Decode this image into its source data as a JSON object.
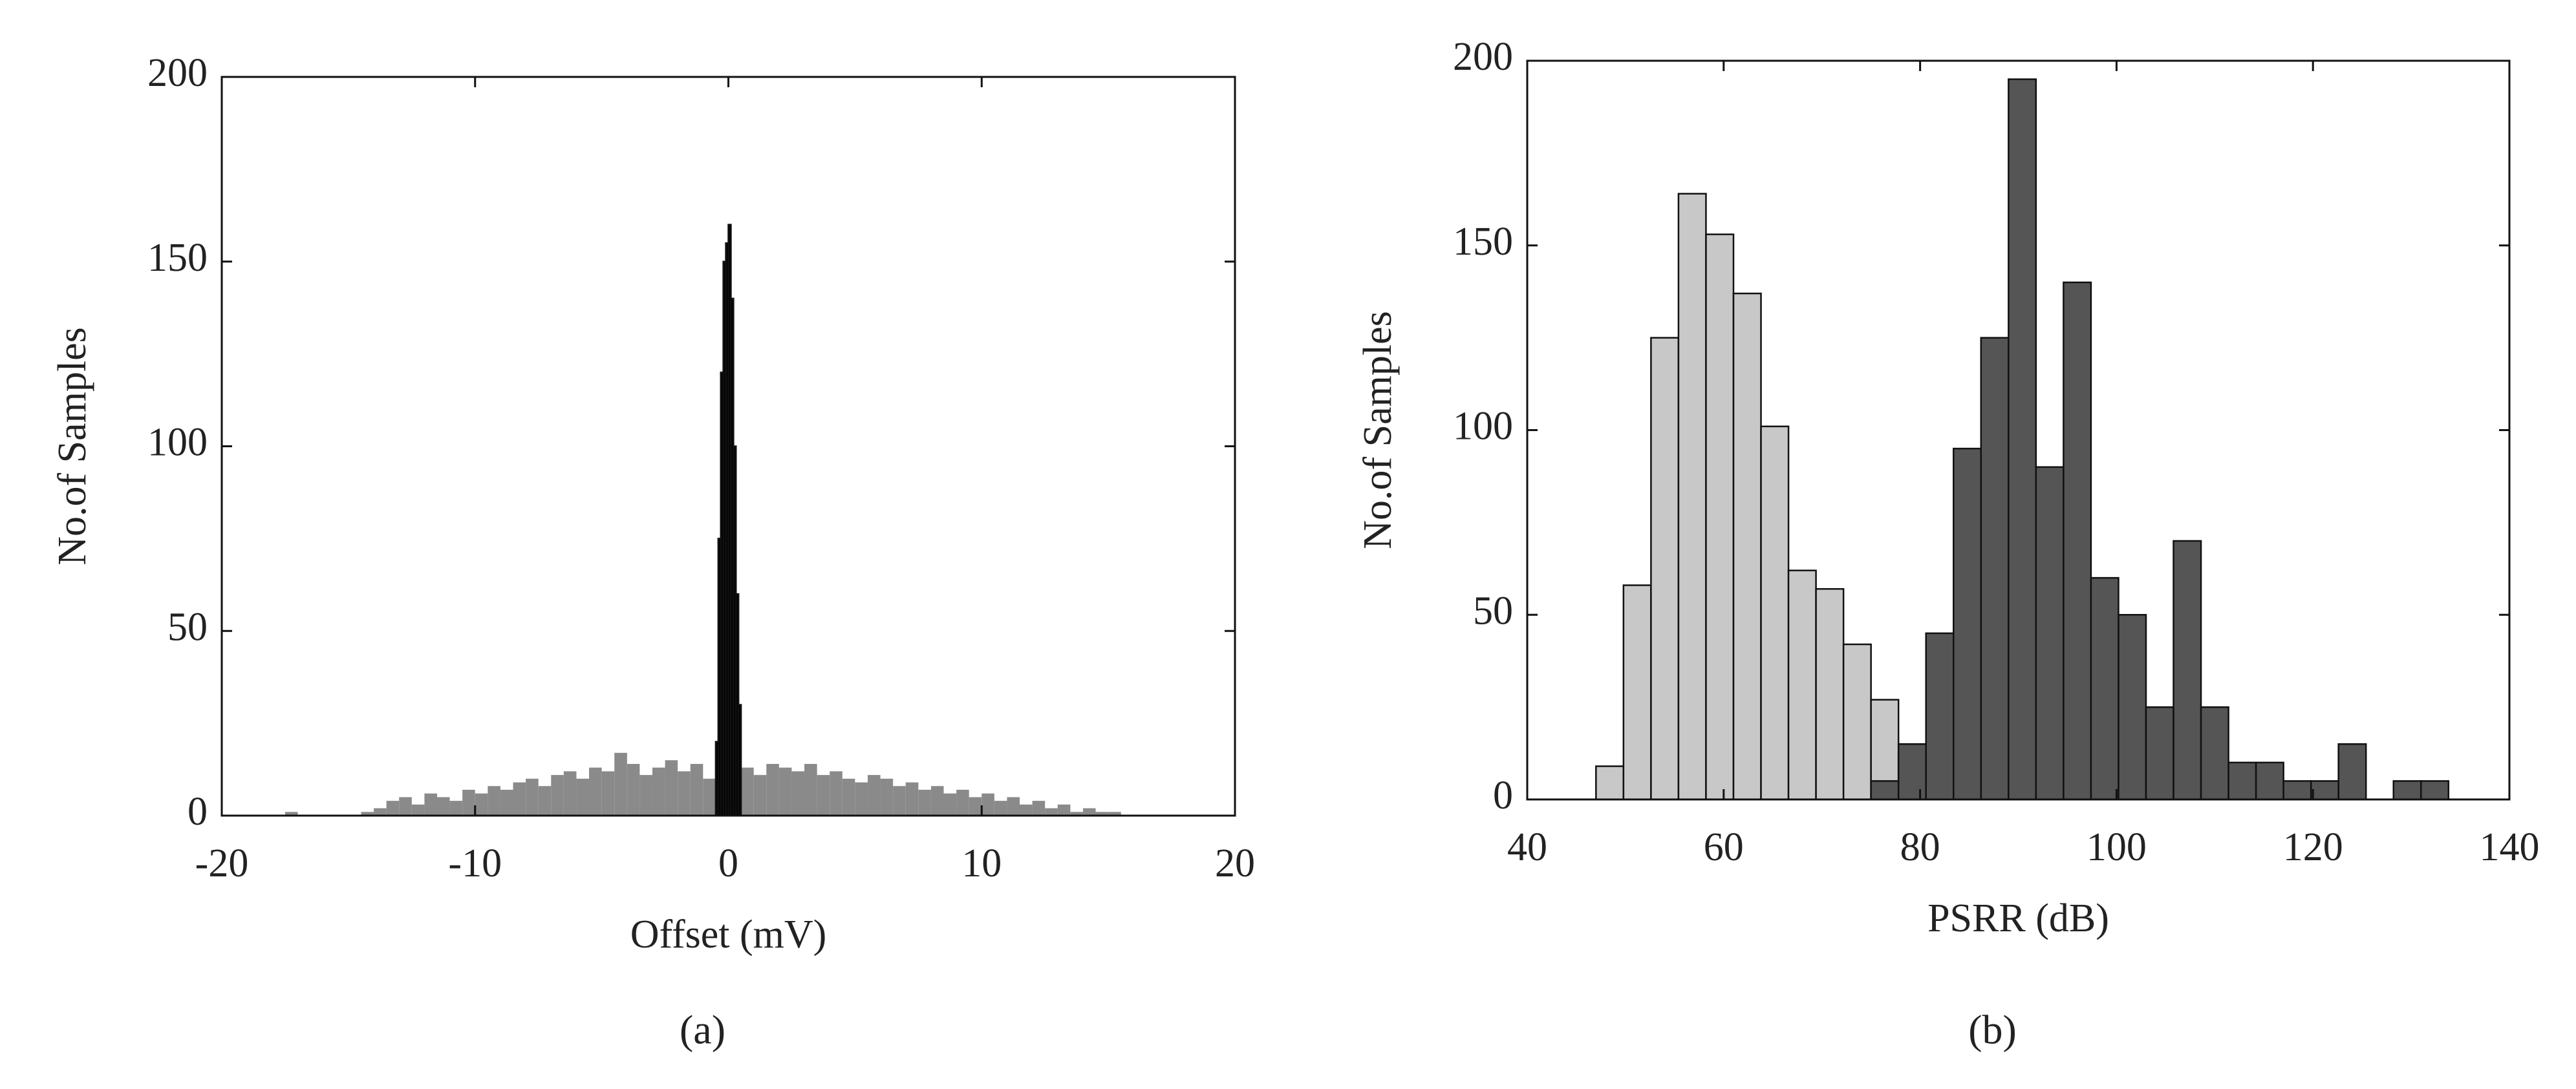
{
  "chart_data": [
    {
      "type": "histogram",
      "caption": "(a)",
      "xlabel": "Offset (mV)",
      "ylabel": "No.of Samples",
      "xlim": [
        -20,
        20
      ],
      "xticks": [
        -20,
        -10,
        0,
        10,
        20
      ],
      "ylim": [
        0,
        200
      ],
      "yticks": [
        0,
        50,
        100,
        150,
        200
      ],
      "series": [
        {
          "color": "#8a8a8a",
          "bins": [
            -18,
            -17.5,
            -17,
            -16.5,
            -16,
            -15.5,
            -15,
            -14.5,
            -14,
            -13.5,
            -13,
            -12.5,
            -12,
            -11.5,
            -11,
            -10.5,
            -10,
            -9.5,
            -9,
            -8.5,
            -8,
            -7.5,
            -7,
            -6.5,
            -6,
            -5.5,
            -5,
            -4.5,
            -4,
            -3.5,
            -3,
            -2.5,
            -2,
            -1.5,
            -1,
            -0.5,
            0,
            0.5,
            1,
            1.5,
            2,
            2.5,
            3,
            3.5,
            4,
            4.5,
            5,
            5.5,
            6,
            6.5,
            7,
            7.5,
            8,
            8.5,
            9,
            9.5,
            10,
            10.5,
            11,
            11.5,
            12,
            12.5,
            13,
            13.5,
            14,
            14.5,
            15,
            15.5,
            16
          ],
          "values": [
            0,
            1,
            0,
            0,
            0,
            0,
            0,
            1,
            2,
            4,
            5,
            3,
            6,
            5,
            4,
            7,
            6,
            8,
            7,
            9,
            10,
            8,
            11,
            12,
            10,
            13,
            12,
            17,
            14,
            11,
            13,
            15,
            12,
            14,
            10,
            12,
            15,
            13,
            11,
            14,
            13,
            12,
            14,
            11,
            12,
            10,
            9,
            11,
            10,
            8,
            9,
            7,
            8,
            6,
            7,
            5,
            6,
            4,
            5,
            3,
            4,
            2,
            3,
            1,
            2,
            1,
            1,
            0
          ]
        },
        {
          "color": "#000000",
          "bins": [
            -0.5,
            -0.4,
            -0.3,
            -0.2,
            -0.1,
            0,
            0.1,
            0.2,
            0.3,
            0.4,
            0.5
          ],
          "values": [
            20,
            75,
            120,
            150,
            155,
            160,
            140,
            100,
            60,
            30
          ]
        }
      ]
    },
    {
      "type": "histogram",
      "caption": "(b)",
      "xlabel": "PSRR (dB)",
      "ylabel": "No.of Samples",
      "xlim": [
        40,
        140
      ],
      "xticks": [
        40,
        60,
        80,
        100,
        120,
        140
      ],
      "ylim": [
        0,
        200
      ],
      "yticks": [
        0,
        50,
        100,
        150,
        200
      ],
      "series": [
        {
          "color": "#c8c8c8",
          "bins": [
            47,
            49.8,
            52.6,
            55.4,
            58.2,
            61,
            63.8,
            66.6,
            69.4,
            72.2,
            75,
            77.8,
            80.6,
            83.4,
            86.2,
            89,
            91.8,
            94.6,
            97.4,
            100.2,
            103,
            105.8,
            108.6,
            111.4,
            114.2,
            117,
            119.8,
            122.6,
            125.4,
            128.2,
            131,
            133.8
          ],
          "values": [
            9,
            58,
            125,
            164,
            153,
            137,
            101,
            62,
            57,
            42,
            27,
            12,
            15,
            10,
            12,
            12,
            5,
            4,
            2,
            2,
            0,
            0,
            0,
            0,
            0,
            0,
            0,
            0,
            0,
            0,
            0
          ]
        },
        {
          "color": "#555555",
          "bins": [
            47,
            49.8,
            52.6,
            55.4,
            58.2,
            61,
            63.8,
            66.6,
            69.4,
            72.2,
            75,
            77.8,
            80.6,
            83.4,
            86.2,
            89,
            91.8,
            94.6,
            97.4,
            100.2,
            103,
            105.8,
            108.6,
            111.4,
            114.2,
            117,
            119.8,
            122.6,
            125.4,
            128.2,
            131,
            133.8
          ],
          "values": [
            0,
            0,
            0,
            0,
            0,
            0,
            0,
            0,
            0,
            0,
            5,
            15,
            45,
            95,
            125,
            195,
            90,
            140,
            60,
            50,
            25,
            70,
            25,
            10,
            10,
            5,
            5,
            15,
            0,
            5,
            5
          ]
        }
      ]
    }
  ]
}
